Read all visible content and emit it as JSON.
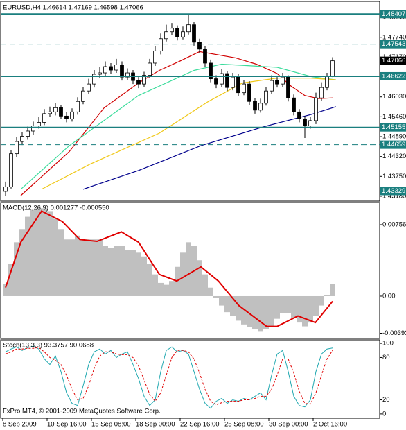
{
  "chart_data": [
    {
      "type": "candlestick",
      "title": "EURUSD,H4 1.46614 1.47169 1.46598 1.47066",
      "open": [
        1.4332,
        1.4345,
        1.444,
        1.4475,
        1.449,
        1.4505,
        1.452,
        1.453,
        1.4555,
        1.456,
        1.4572,
        1.4548,
        1.454,
        1.456,
        1.459,
        1.462,
        1.464,
        1.4668,
        1.4672,
        1.469,
        1.468,
        1.4695,
        1.466,
        1.4672,
        1.465,
        1.464,
        1.4665,
        1.47,
        1.4735,
        1.477,
        1.479,
        1.48,
        1.4775,
        1.479,
        1.481,
        1.476,
        1.474,
        1.47,
        1.4655,
        1.464,
        1.467,
        1.463,
        1.466,
        1.4615,
        1.464,
        1.459,
        1.4565,
        1.4585,
        1.462,
        1.465,
        1.464,
        1.466,
        1.46,
        1.456,
        1.454,
        1.452,
        1.4535,
        1.46,
        1.463,
        1.46614
      ],
      "high": [
        1.436,
        1.445,
        1.4488,
        1.4502,
        1.4518,
        1.4532,
        1.4545,
        1.4568,
        1.4575,
        1.4585,
        1.458,
        1.456,
        1.457,
        1.4602,
        1.4632,
        1.4655,
        1.468,
        1.469,
        1.4705,
        1.47,
        1.4712,
        1.4705,
        1.4685,
        1.468,
        1.466,
        1.4675,
        1.4712,
        1.4748,
        1.4785,
        1.481,
        1.4815,
        1.4808,
        1.4805,
        1.484,
        1.4818,
        1.477,
        1.4748,
        1.471,
        1.4665,
        1.4682,
        1.4678,
        1.4672,
        1.4668,
        1.4652,
        1.4648,
        1.46,
        1.4598,
        1.4632,
        1.4665,
        1.466,
        1.4672,
        1.4665,
        1.461,
        1.4568,
        1.4548,
        1.4545,
        1.4615,
        1.4645,
        1.4672,
        1.47169
      ],
      "low": [
        1.432,
        1.434,
        1.443,
        1.4465,
        1.448,
        1.4495,
        1.4512,
        1.4522,
        1.4545,
        1.455,
        1.454,
        1.453,
        1.4532,
        1.4552,
        1.4582,
        1.4612,
        1.463,
        1.4658,
        1.4662,
        1.467,
        1.4672,
        1.465,
        1.4652,
        1.464,
        1.4628,
        1.4632,
        1.4658,
        1.4692,
        1.4725,
        1.4762,
        1.478,
        1.4765,
        1.4768,
        1.4782,
        1.475,
        1.473,
        1.469,
        1.4645,
        1.4628,
        1.4632,
        1.462,
        1.4622,
        1.4605,
        1.4608,
        1.458,
        1.4555,
        1.4558,
        1.4578,
        1.4612,
        1.463,
        1.4632,
        1.459,
        1.455,
        1.453,
        1.4485,
        1.4512,
        1.4525,
        1.4592,
        1.4622,
        1.46598
      ],
      "close": [
        1.4345,
        1.444,
        1.4475,
        1.449,
        1.4505,
        1.452,
        1.453,
        1.4555,
        1.456,
        1.4572,
        1.4548,
        1.454,
        1.456,
        1.459,
        1.462,
        1.464,
        1.4668,
        1.4672,
        1.469,
        1.468,
        1.4695,
        1.466,
        1.4672,
        1.465,
        1.464,
        1.4665,
        1.47,
        1.4735,
        1.477,
        1.479,
        1.48,
        1.4775,
        1.479,
        1.481,
        1.476,
        1.474,
        1.47,
        1.4655,
        1.464,
        1.467,
        1.463,
        1.466,
        1.4615,
        1.464,
        1.459,
        1.4565,
        1.4585,
        1.462,
        1.465,
        1.464,
        1.466,
        1.46,
        1.456,
        1.454,
        1.452,
        1.4535,
        1.46,
        1.463,
        1.46614,
        1.47066
      ],
      "series": [
        {
          "color": "#d00000",
          "x": [
            2.75,
            11.5,
            17.75,
            24,
            27.75,
            31.5,
            35,
            41.5,
            45.25,
            49,
            51.5,
            54,
            56.5,
            59
          ],
          "values": [
            1.432,
            1.4446,
            1.4571,
            1.4643,
            1.4679,
            1.4706,
            1.4733,
            1.4715,
            1.4697,
            1.467,
            1.4634,
            1.4607,
            1.4598,
            1.46
          ]
        },
        {
          "color": "#3cdc9c",
          "x": [
            2.75,
            11.5,
            24,
            34,
            39,
            49,
            55.25,
            59.6
          ],
          "values": [
            1.4338,
            1.4463,
            1.4607,
            1.4679,
            1.4697,
            1.4688,
            1.4661,
            1.4652
          ]
        },
        {
          "color": "#f0c818",
          "x": [
            6.5,
            15.25,
            27.75,
            36.5,
            42.75,
            49,
            55,
            59.6
          ],
          "values": [
            1.4338,
            1.441,
            1.4499,
            1.4589,
            1.4643,
            1.4657,
            1.4657,
            1.4652
          ]
        },
        {
          "color": "#00008c",
          "x": [
            14,
            24,
            35.25,
            46.5,
            55.25,
            59.6
          ],
          "values": [
            1.4338,
            1.4392,
            1.4463,
            1.4517,
            1.4553,
            1.4575
          ]
        }
      ],
      "levels": [
        {
          "value": 1.48407,
          "style": "solid"
        },
        {
          "value": 1.47543,
          "style": "dashed"
        },
        {
          "value": 1.46622,
          "style": "solid"
        },
        {
          "value": 1.45155,
          "style": "solid"
        },
        {
          "value": 1.44659,
          "style": "dashed"
        },
        {
          "value": 1.43329,
          "style": "dashed"
        }
      ],
      "level_color": "#1a7f7f",
      "ylim": [
        1.4304,
        1.4877
      ],
      "yticks": [
        {
          "value": 1.4831,
          "label": "1.48310"
        },
        {
          "value": 1.4774,
          "label": "1.47740"
        },
        {
          "value": 1.4717,
          "label": "1.47170"
        },
        {
          "value": 1.466,
          "label": "1.46600"
        },
        {
          "value": 1.4603,
          "label": "1.46030"
        },
        {
          "value": 1.4546,
          "label": "1.45460"
        },
        {
          "value": 1.4489,
          "label": "1.44890"
        },
        {
          "value": 1.4432,
          "label": "1.44320"
        },
        {
          "value": 1.4375,
          "label": "1.43750"
        },
        {
          "value": 1.4318,
          "label": "1.43180"
        }
      ],
      "xticks": [
        {
          "value": -0.5,
          "label": "8 Sep 2009"
        },
        {
          "value": 7.5,
          "label": "10 Sep 16:00"
        },
        {
          "value": 15.5,
          "label": "15 Sep 08:00"
        },
        {
          "value": 23.5,
          "label": "18 Sep 00:00"
        },
        {
          "value": 31.5,
          "label": "22 Sep 16:00"
        },
        {
          "value": 39.5,
          "label": "25 Sep 08:00"
        },
        {
          "value": 47.5,
          "label": "30 Sep 00:00"
        },
        {
          "value": 55.5,
          "label": "2 Oct 16:00"
        }
      ]
    },
    {
      "type": "macd",
      "title": "MACD(12,26,9) 0.001277 -0.000550",
      "histogram": {
        "color": "#c0c0c0",
        "values": [
          0.00125,
          0.0034,
          0.0057,
          0.0071,
          0.0084,
          0.0091,
          0.0093,
          0.0093,
          0.009,
          0.0082,
          0.0071,
          0.006,
          0.006,
          0.0064,
          0.006,
          0.006,
          0.006,
          0.006,
          0.0053,
          0.0051,
          0.0053,
          0.0053,
          0.0049,
          0.0049,
          0.0046,
          0.0042,
          0.0034,
          0.0023,
          0.0014,
          0.0012,
          0.0016,
          0.0031,
          0.0046,
          0.0057,
          0.0053,
          0.0038,
          0.0023,
          0.0009,
          -0.0002,
          -0.001,
          -0.0017,
          -0.0021,
          -0.0026,
          -0.003,
          -0.0033,
          -0.0035,
          -0.0037,
          -0.0035,
          -0.0032,
          -0.0024,
          -0.0018,
          -0.0018,
          -0.0023,
          -0.0028,
          -0.0032,
          -0.0028,
          -0.0021,
          -0.001,
          0.0001,
          0.001277
        ]
      },
      "signal": {
        "color": "#e00000",
        "x": [
          0,
          2.75,
          6.5,
          10.25,
          13.4,
          16.5,
          20.9,
          24,
          27.75,
          30.9,
          35.25,
          38.4,
          42.1,
          47.1,
          49,
          52.75,
          55.9,
          59
        ],
        "values": [
          0.0009,
          0.0057,
          0.009,
          0.0079,
          0.006,
          0.0058,
          0.0068,
          0.0057,
          0.0023,
          0.0016,
          0.0031,
          0.0016,
          -0.001,
          -0.0032,
          -0.0032,
          -0.0021,
          -0.0028,
          -0.00055
        ]
      },
      "ylim": [
        -0.00448,
        0.00991
      ],
      "yticks": [
        0.00756,
        {
          "value": 0,
          "label": "0.00"
        },
        -0.00393
      ]
    },
    {
      "type": "stochastic",
      "title": "Stoch(13,3,3) 93.3757 90.0688",
      "main": {
        "color": "#20a8b0",
        "values": [
          88,
          92,
          95,
          90,
          94,
          96,
          92,
          78,
          70,
          82,
          60,
          30,
          15,
          12,
          40,
          70,
          88,
          92,
          85,
          90,
          80,
          85,
          88,
          70,
          50,
          25,
          12,
          20,
          60,
          90,
          95,
          88,
          90,
          85,
          60,
          35,
          15,
          8,
          18,
          22,
          15,
          20,
          18,
          22,
          20,
          25,
          30,
          20,
          55,
          85,
          90,
          60,
          25,
          12,
          10,
          20,
          60,
          85,
          92,
          93.3757
        ]
      },
      "signal": {
        "color": "#e00000",
        "values": [
          85,
          88,
          92,
          92,
          93,
          93,
          94,
          88,
          80,
          76,
          70,
          55,
          35,
          20,
          22,
          40,
          65,
          82,
          88,
          88,
          85,
          84,
          84,
          80,
          68,
          48,
          28,
          18,
          30,
          55,
          80,
          90,
          90,
          88,
          78,
          58,
          35,
          18,
          13,
          16,
          18,
          18,
          18,
          20,
          20,
          22,
          25,
          25,
          35,
          55,
          78,
          78,
          58,
          32,
          15,
          14,
          30,
          55,
          78,
          90.0688
        ]
      },
      "ylim": [
        -6,
        105
      ],
      "yticks": [
        100,
        80,
        20,
        0
      ],
      "footer": "FxPro MT4, © 2001-2009 MetaQuotes Software Corp."
    }
  ]
}
